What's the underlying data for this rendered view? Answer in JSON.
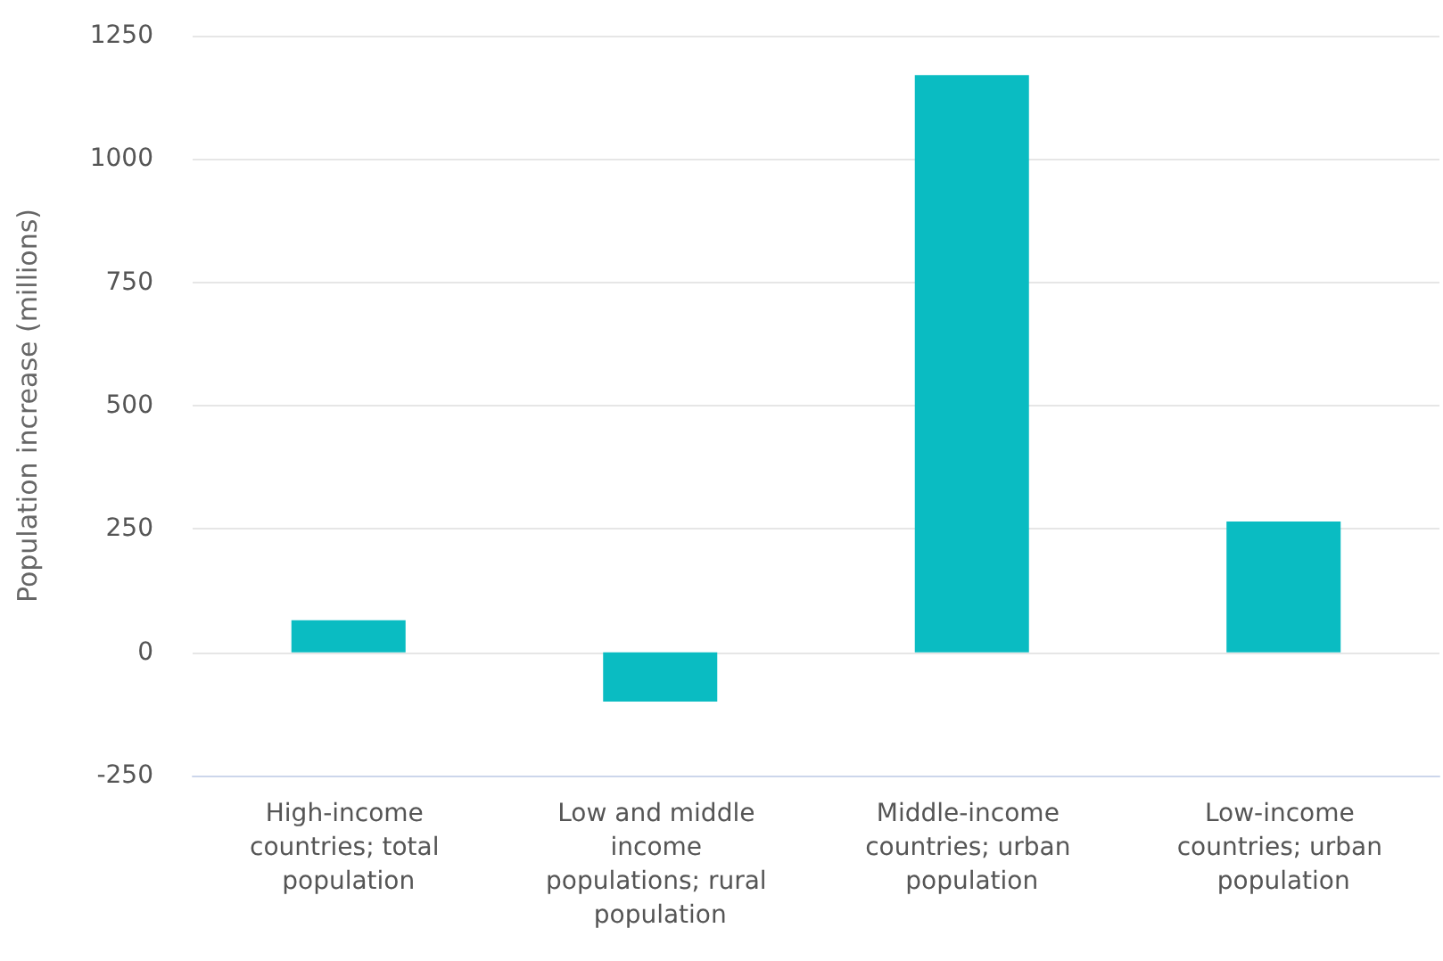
{
  "chart_data": {
    "type": "bar",
    "ylabel": "Population increase (millions)",
    "categories": [
      "High-income countries; total population",
      "Low and middle income populations; rural population",
      "Middle-income countries; urban population",
      "Low-income countries; urban population"
    ],
    "values": [
      65,
      -100,
      1170,
      265
    ],
    "color": "#0abcc2",
    "ylim": [
      -250,
      1250
    ],
    "yticks": [
      -250,
      0,
      250,
      500,
      750,
      1000,
      1250
    ],
    "grid": "y"
  }
}
